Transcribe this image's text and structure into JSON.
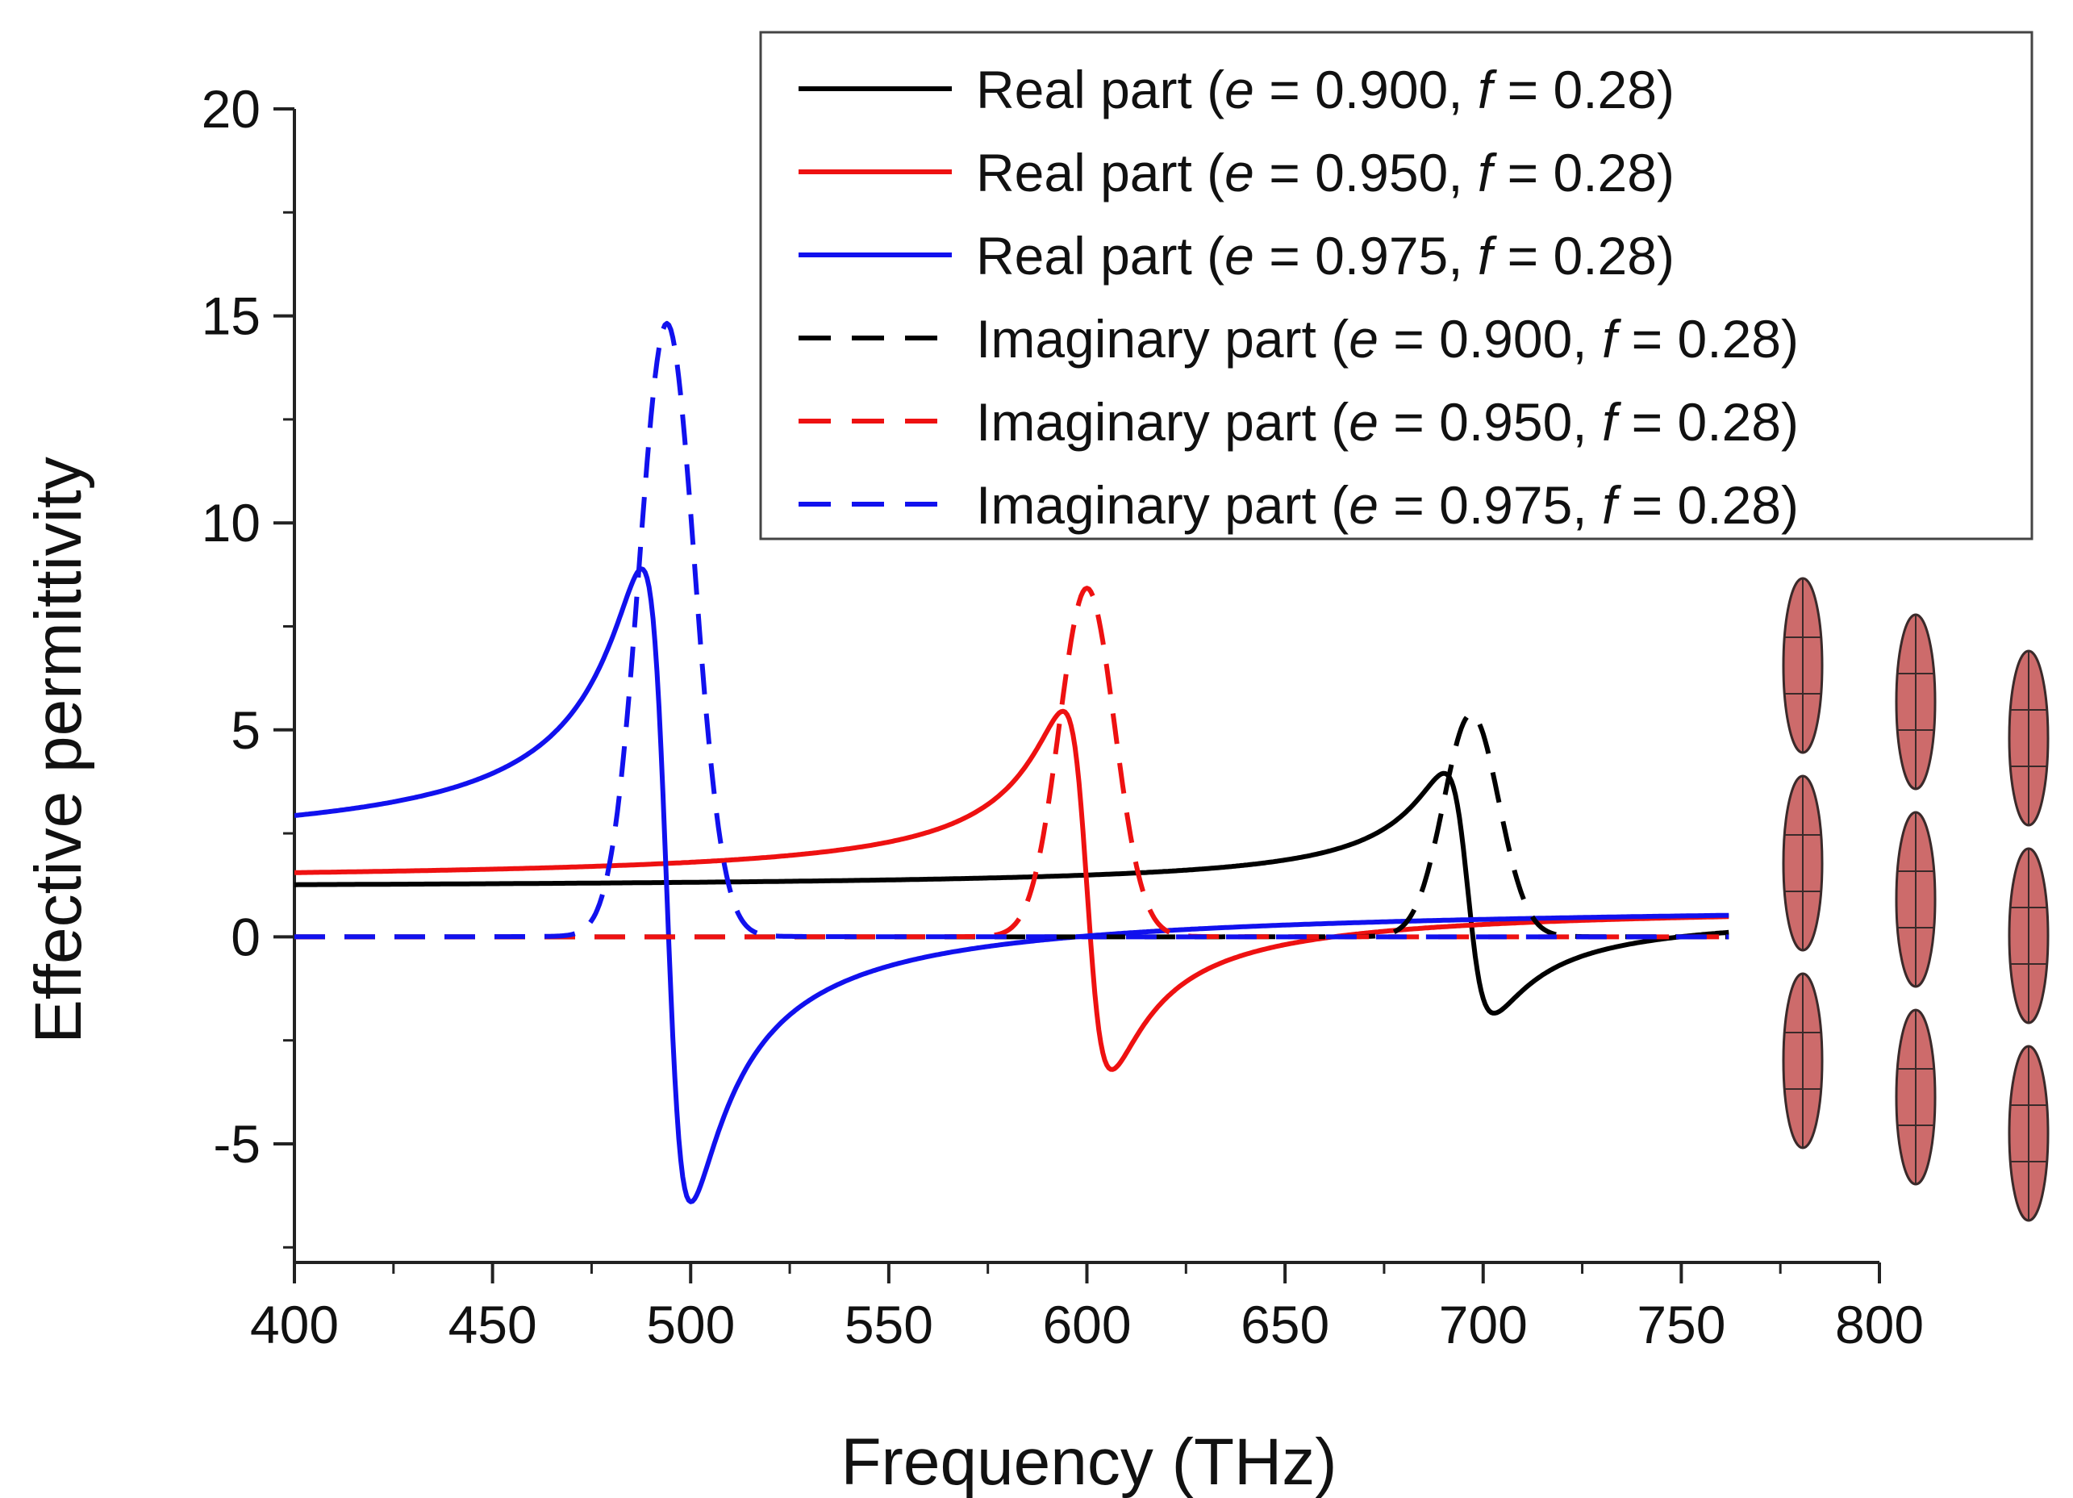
{
  "chart_data": {
    "type": "line",
    "title": "",
    "xlabel": "Frequency (THz)",
    "ylabel": "Effective permittivity",
    "xlim": [
      400,
      800
    ],
    "ylim": [
      -8,
      20
    ],
    "x_ticks": [
      400,
      450,
      500,
      550,
      600,
      650,
      700,
      750,
      800
    ],
    "x_tick_labels": [
      "400",
      "450",
      "500",
      "550",
      "600",
      "650",
      "700",
      "750",
      "800"
    ],
    "y_ticks": [
      -5,
      0,
      5,
      10,
      15,
      20
    ],
    "y_tick_labels": [
      "-5",
      "0",
      "5",
      "10",
      "15",
      "20"
    ],
    "x_range_of_data": [
      400,
      762
    ],
    "legend_position": "top-right",
    "colors": {
      "black": "#000000",
      "red": "#ee1111",
      "blue": "#1111ee",
      "ellipse_fill": "#cd6b6b",
      "ellipse_stroke": "#3a2a2a"
    },
    "series": [
      {
        "name": "real-0.900",
        "part": "Real part",
        "e": "0.900",
        "f": "0.28",
        "style": "solid",
        "color": "#000000",
        "resonance": {
          "peak_x": 690,
          "peak_y": 4.0,
          "trough_x": 702,
          "trough_y": -1.5,
          "low_value": 1.15,
          "high_value": 0.6
        }
      },
      {
        "name": "real-0.950",
        "part": "Real part",
        "e": "0.950",
        "f": "0.28",
        "style": "solid",
        "color": "#ee1111",
        "resonance": {
          "peak_x": 594,
          "peak_y": 5.4,
          "trough_x": 606,
          "trough_y": -3.0,
          "low_value": 1.3,
          "high_value": 0.8
        }
      },
      {
        "name": "real-0.975",
        "part": "Real part",
        "e": "0.975",
        "f": "0.28",
        "style": "solid",
        "color": "#1111ee",
        "resonance": {
          "peak_x": 488,
          "peak_y": 8.4,
          "trough_x": 500,
          "trough_y": -6.3,
          "low_value": 2.0,
          "high_value": 0.85
        }
      },
      {
        "name": "imag-0.900",
        "part": "Imaginary part",
        "e": "0.900",
        "f": "0.28",
        "style": "dashed",
        "color": "#000000",
        "peak_x": 697,
        "peak_y": 5.3,
        "baseline": 0
      },
      {
        "name": "imag-0.950",
        "part": "Imaginary part",
        "e": "0.950",
        "f": "0.28",
        "style": "dashed",
        "color": "#ee1111",
        "peak_x": 600,
        "peak_y": 8.3,
        "baseline": 0
      },
      {
        "name": "imag-0.975",
        "part": "Imaginary part",
        "e": "0.975",
        "f": "0.28",
        "style": "dashed",
        "color": "#1111ee",
        "peak_x": 494,
        "peak_y": 14.6,
        "baseline": 0
      }
    ],
    "legend": [
      {
        "part": "Real part",
        "open": " (",
        "e_var": "e",
        "e_eq": " = 0.900, ",
        "f_var": "f",
        "f_eq": " = 0.28)"
      },
      {
        "part": "Real part",
        "open": " (",
        "e_var": "e",
        "e_eq": " = 0.950, ",
        "f_var": "f",
        "f_eq": " = 0.28)"
      },
      {
        "part": "Real part",
        "open": " (",
        "e_var": "e",
        "e_eq": " = 0.975, ",
        "f_var": "f",
        "f_eq": " = 0.28)"
      },
      {
        "part": "Imaginary part",
        "open": " (",
        "e_var": "e",
        "e_eq": " = 0.900, ",
        "f_var": "f",
        "f_eq": " = 0.28)"
      },
      {
        "part": "Imaginary part",
        "open": " (",
        "e_var": "e",
        "e_eq": " = 0.950, ",
        "f_var": "f",
        "f_eq": " = 0.28)"
      },
      {
        "part": "Imaginary part",
        "open": " (",
        "e_var": "e",
        "e_eq": " = 0.975, ",
        "f_var": "f",
        "f_eq": " = 0.28)"
      }
    ],
    "inset": {
      "description_icon": "ellipsoid-array-icon",
      "columns": 3,
      "rows": 3
    }
  }
}
